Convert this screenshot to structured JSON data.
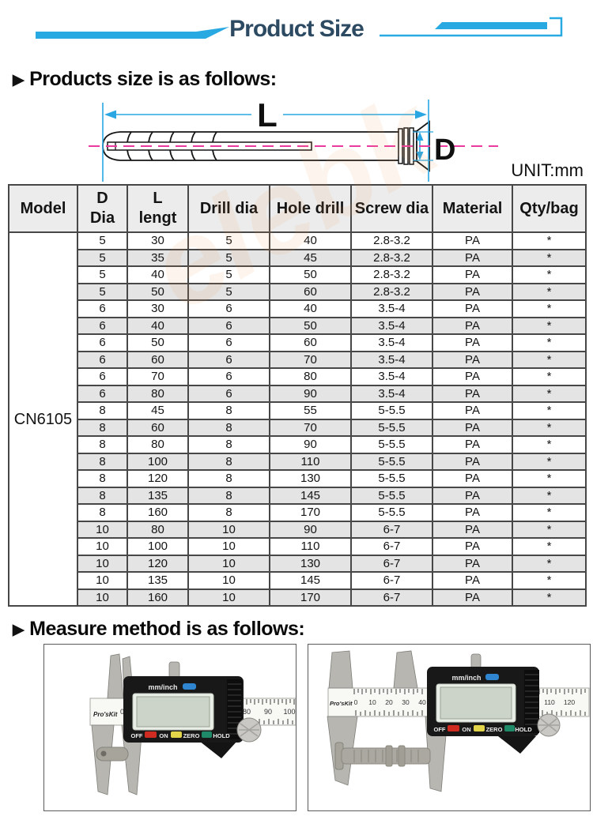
{
  "header": {
    "title": "Product Size"
  },
  "colors": {
    "accent_blue": "#29a9e2",
    "title_navy": "#2d4a63",
    "centerline_pink": "#e93a9e",
    "table_border": "#474747",
    "stripe_gray": "#e4e4e4",
    "header_gray": "#ececec"
  },
  "sections": {
    "arrow_icon": "▶",
    "size_heading": "Products size is as follows:",
    "measure_heading": "Measure method is as follows:",
    "unit_label": "UNIT:mm"
  },
  "diagram": {
    "length_label": "L",
    "diameter_label": "D"
  },
  "watermark": "elebk",
  "table": {
    "model": "CN6105",
    "columns": [
      {
        "line1": "Model",
        "line2": ""
      },
      {
        "line1": "D",
        "line2": "Dia"
      },
      {
        "line1": "L",
        "line2": "lengt"
      },
      {
        "line1": "Drill dia",
        "line2": ""
      },
      {
        "line1": "Hole drill",
        "line2": ""
      },
      {
        "line1": "Screw dia",
        "line2": ""
      },
      {
        "line1": "Material",
        "line2": ""
      },
      {
        "line1": "Qty/bag",
        "line2": ""
      }
    ],
    "rows": [
      [
        "5",
        "30",
        "5",
        "40",
        "2.8-3.2",
        "PA",
        "*"
      ],
      [
        "5",
        "35",
        "5",
        "45",
        "2.8-3.2",
        "PA",
        "*"
      ],
      [
        "5",
        "40",
        "5",
        "50",
        "2.8-3.2",
        "PA",
        "*"
      ],
      [
        "5",
        "50",
        "5",
        "60",
        "2.8-3.2",
        "PA",
        "*"
      ],
      [
        "6",
        "30",
        "6",
        "40",
        "3.5-4",
        "PA",
        "*"
      ],
      [
        "6",
        "40",
        "6",
        "50",
        "3.5-4",
        "PA",
        "*"
      ],
      [
        "6",
        "50",
        "6",
        "60",
        "3.5-4",
        "PA",
        "*"
      ],
      [
        "6",
        "60",
        "6",
        "70",
        "3.5-4",
        "PA",
        "*"
      ],
      [
        "6",
        "70",
        "6",
        "80",
        "3.5-4",
        "PA",
        "*"
      ],
      [
        "6",
        "80",
        "6",
        "90",
        "3.5-4",
        "PA",
        "*"
      ],
      [
        "8",
        "45",
        "8",
        "55",
        "5-5.5",
        "PA",
        "*"
      ],
      [
        "8",
        "60",
        "8",
        "70",
        "5-5.5",
        "PA",
        "*"
      ],
      [
        "8",
        "80",
        "8",
        "90",
        "5-5.5",
        "PA",
        "*"
      ],
      [
        "8",
        "100",
        "8",
        "110",
        "5-5.5",
        "PA",
        "*"
      ],
      [
        "8",
        "120",
        "8",
        "130",
        "5-5.5",
        "PA",
        "*"
      ],
      [
        "8",
        "135",
        "8",
        "145",
        "5-5.5",
        "PA",
        "*"
      ],
      [
        "8",
        "160",
        "8",
        "170",
        "5-5.5",
        "PA",
        "*"
      ],
      [
        "10",
        "80",
        "10",
        "90",
        "6-7",
        "PA",
        "*"
      ],
      [
        "10",
        "100",
        "10",
        "110",
        "6-7",
        "PA",
        "*"
      ],
      [
        "10",
        "120",
        "10",
        "130",
        "6-7",
        "PA",
        "*"
      ],
      [
        "10",
        "135",
        "10",
        "145",
        "6-7",
        "PA",
        "*"
      ],
      [
        "10",
        "160",
        "10",
        "170",
        "6-7",
        "PA",
        "*"
      ]
    ]
  },
  "photos": {
    "brand": "Pro'sKit",
    "left_zero": "0",
    "mm_inch": "mm/inch",
    "btn_off": "OFF",
    "btn_on": "ON",
    "btn_zero": "ZERO",
    "btn_hold": "HOLD",
    "left_scale": [
      "80",
      "90",
      "100"
    ],
    "right_scale": [
      "0",
      "10",
      "20",
      "30",
      "40",
      "110",
      "120"
    ]
  }
}
